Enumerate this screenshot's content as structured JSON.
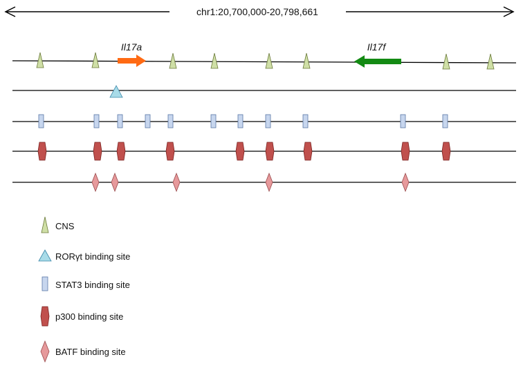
{
  "title": "chr1:20,700,000-20,798,661",
  "genes": [
    {
      "name": "Il17a",
      "direction": "right",
      "color": "#ff6a13"
    },
    {
      "name": "Il17f",
      "direction": "left",
      "color": "#138a13"
    }
  ],
  "tracks": {
    "cns": {
      "fill": "#cfdfa6",
      "stroke": "#6b7a3a"
    },
    "rorgt": {
      "fill": "#a8dbe8",
      "stroke": "#3a86a8"
    },
    "stat3": {
      "fill": "#c7d6ee",
      "stroke": "#5a78a6"
    },
    "p300": {
      "fill": "#c0504d",
      "stroke": "#7a2220"
    },
    "batf": {
      "fill": "#e6999b",
      "stroke": "#9a4a4c"
    }
  },
  "legend": [
    {
      "key": "cns",
      "label": "CNS"
    },
    {
      "key": "rorgt",
      "label_pre": "ROR",
      "label_greek": "γ",
      "label_post": "t binding site"
    },
    {
      "key": "stat3",
      "label": "STAT3 binding site"
    },
    {
      "key": "p300",
      "label": "p300 binding site"
    },
    {
      "key": "batf",
      "label": "BATF binding site"
    }
  ]
}
